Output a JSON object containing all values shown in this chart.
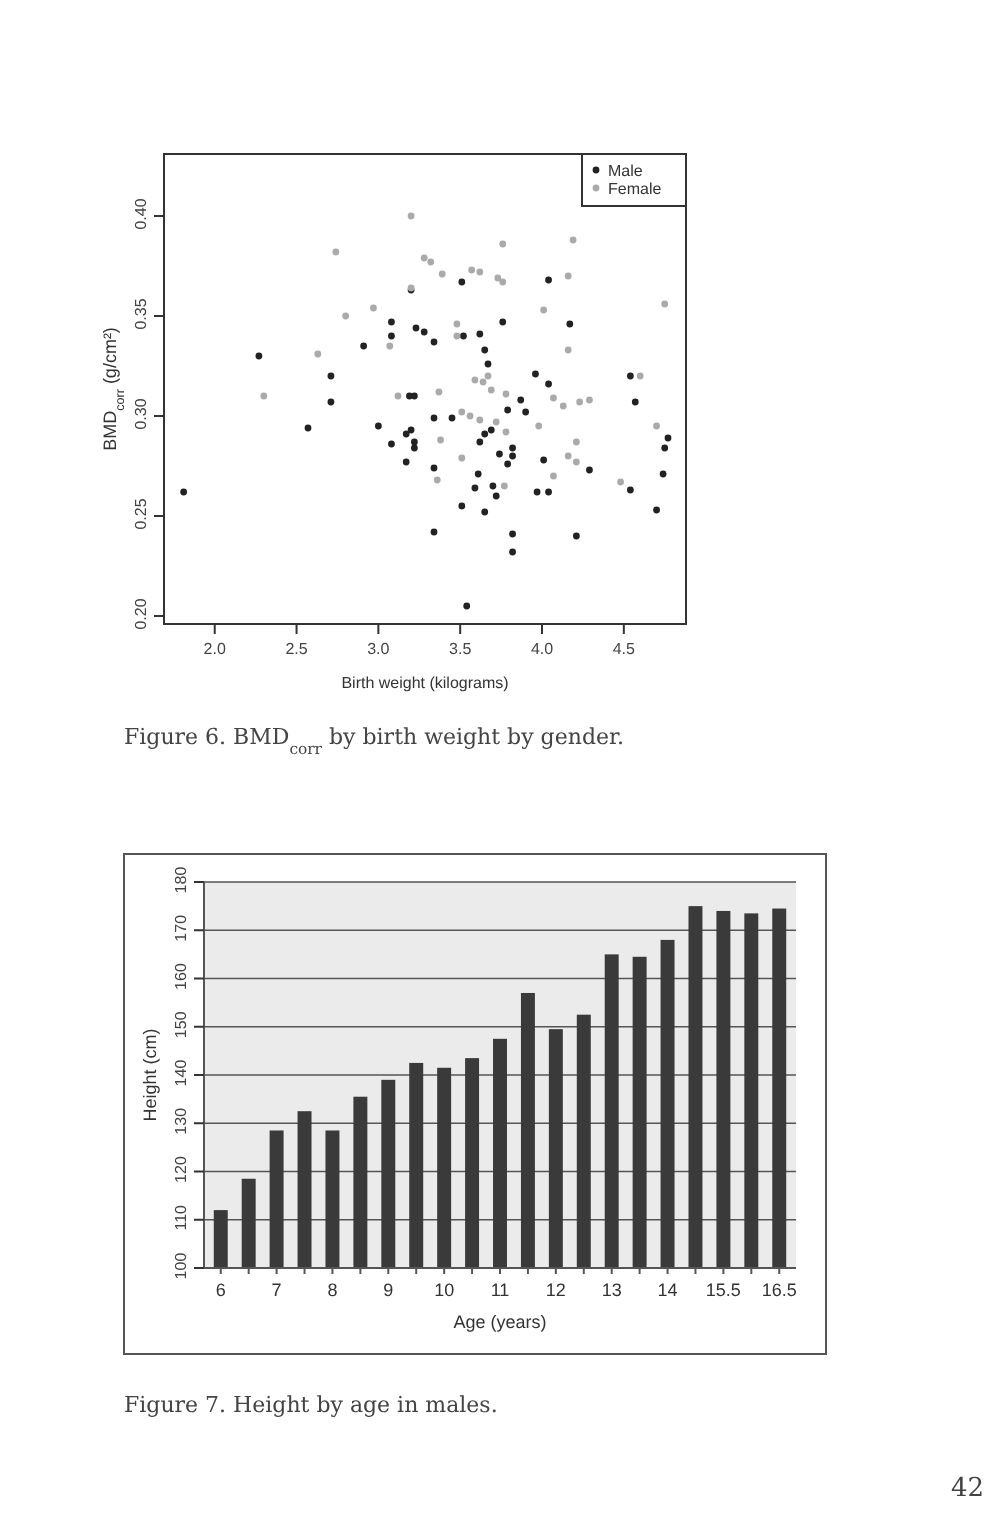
{
  "chart_data": [
    {
      "type": "scatter",
      "xlabel": "Birth weight (kilograms)",
      "ylabel": "BMD$_{corr}$ (g/cm²)",
      "annotations": [
        "Figure 6. BMD$_{corr}$ by birth weight by gender."
      ],
      "xlim": [
        1.69,
        4.88
      ],
      "ylim": [
        0.196,
        0.431
      ],
      "xticks": [
        {
          "value": 2,
          "label": "2.0"
        },
        2.5,
        {
          "value": 3,
          "label": "3.0"
        },
        3.5,
        {
          "value": 4,
          "label": "4.0"
        },
        4.5
      ],
      "yticks": [
        {
          "value": 0.2,
          "label": "0.20"
        },
        0.25,
        {
          "value": 0.3,
          "label": "0.30"
        },
        0.35,
        {
          "value": 0.4,
          "label": "0.40"
        }
      ],
      "grid": false,
      "legend": "top right",
      "marker": "circle",
      "series": [
        {
          "name": "Male",
          "color": "#222222",
          "x": [
            1.81,
            2.27,
            2.57,
            2.71,
            2.71,
            2.91,
            3.0,
            3.08,
            3.08,
            3.08,
            3.17,
            3.17,
            3.19,
            3.22,
            3.2,
            3.2,
            3.22,
            3.22,
            3.23,
            3.28,
            3.34,
            3.34,
            3.34,
            3.34,
            3.45,
            3.51,
            3.52,
            3.51,
            3.54,
            3.62,
            3.62,
            3.61,
            3.59,
            3.65,
            3.65,
            3.65,
            3.67,
            3.69,
            3.7,
            3.72,
            3.76,
            3.74,
            3.79,
            3.79,
            3.82,
            3.82,
            3.82,
            3.82,
            3.87,
            3.9,
            3.96,
            3.97,
            4.01,
            4.04,
            4.04,
            4.04,
            4.17,
            4.29,
            4.21,
            4.54,
            4.57,
            4.54,
            4.7,
            4.74,
            4.75,
            4.77
          ],
          "values": [
            0.262,
            0.33,
            0.294,
            0.32,
            0.307,
            0.335,
            0.295,
            0.347,
            0.34,
            0.286,
            0.277,
            0.291,
            0.31,
            0.31,
            0.293,
            0.363,
            0.287,
            0.284,
            0.344,
            0.342,
            0.337,
            0.299,
            0.274,
            0.242,
            0.299,
            0.367,
            0.34,
            0.255,
            0.205,
            0.341,
            0.287,
            0.271,
            0.264,
            0.333,
            0.291,
            0.252,
            0.326,
            0.293,
            0.265,
            0.26,
            0.347,
            0.281,
            0.303,
            0.276,
            0.284,
            0.28,
            0.241,
            0.232,
            0.308,
            0.302,
            0.321,
            0.262,
            0.278,
            0.316,
            0.262,
            0.368,
            0.346,
            0.273,
            0.24,
            0.32,
            0.307,
            0.263,
            0.253,
            0.271,
            0.284,
            0.289
          ]
        },
        {
          "name": "Female",
          "color": "#aaaaaa",
          "x": [
            2.3,
            2.74,
            2.8,
            2.63,
            2.97,
            3.07,
            3.2,
            3.2,
            3.12,
            3.28,
            3.32,
            3.39,
            3.37,
            3.38,
            3.36,
            3.48,
            3.48,
            3.51,
            3.56,
            3.51,
            3.57,
            3.62,
            3.59,
            3.62,
            3.64,
            3.67,
            3.69,
            3.72,
            3.73,
            3.76,
            3.76,
            3.78,
            3.78,
            3.77,
            3.98,
            4.01,
            4.07,
            4.07,
            4.13,
            4.16,
            4.16,
            4.16,
            4.19,
            4.21,
            4.21,
            4.23,
            4.29,
            4.48,
            4.6,
            4.7,
            4.75
          ],
          "values": [
            0.31,
            0.382,
            0.35,
            0.331,
            0.354,
            0.335,
            0.4,
            0.364,
            0.31,
            0.379,
            0.377,
            0.371,
            0.312,
            0.288,
            0.268,
            0.346,
            0.34,
            0.302,
            0.3,
            0.279,
            0.373,
            0.372,
            0.318,
            0.298,
            0.317,
            0.32,
            0.313,
            0.297,
            0.369,
            0.367,
            0.386,
            0.311,
            0.292,
            0.265,
            0.295,
            0.353,
            0.309,
            0.27,
            0.305,
            0.37,
            0.333,
            0.28,
            0.388,
            0.287,
            0.277,
            0.307,
            0.308,
            0.267,
            0.32,
            0.295,
            0.356
          ]
        }
      ]
    },
    {
      "type": "bar",
      "xlabel": "Age (years)",
      "ylabel": "Height (cm)",
      "annotations": [
        "Figure 7. Height by age in males.",
        "42"
      ],
      "categories": [
        "6",
        null,
        "7",
        null,
        "8",
        null,
        "9",
        null,
        "10",
        null,
        "11",
        null,
        "12",
        null,
        "13",
        null,
        "14",
        null,
        "15.5",
        null,
        "16.5"
      ],
      "color": "#3a3a3a",
      "values": [
        112,
        118.5,
        128.5,
        132.5,
        128.5,
        135.5,
        139,
        142.5,
        141.5,
        143.5,
        147.5,
        157,
        149.5,
        152.5,
        165,
        164.5,
        168,
        175,
        174,
        173.5,
        174.5
      ],
      "ylim": [
        100,
        180
      ],
      "yticks": [
        100,
        110,
        120,
        130,
        140,
        150,
        160,
        170,
        180
      ],
      "grid": "y"
    }
  ]
}
